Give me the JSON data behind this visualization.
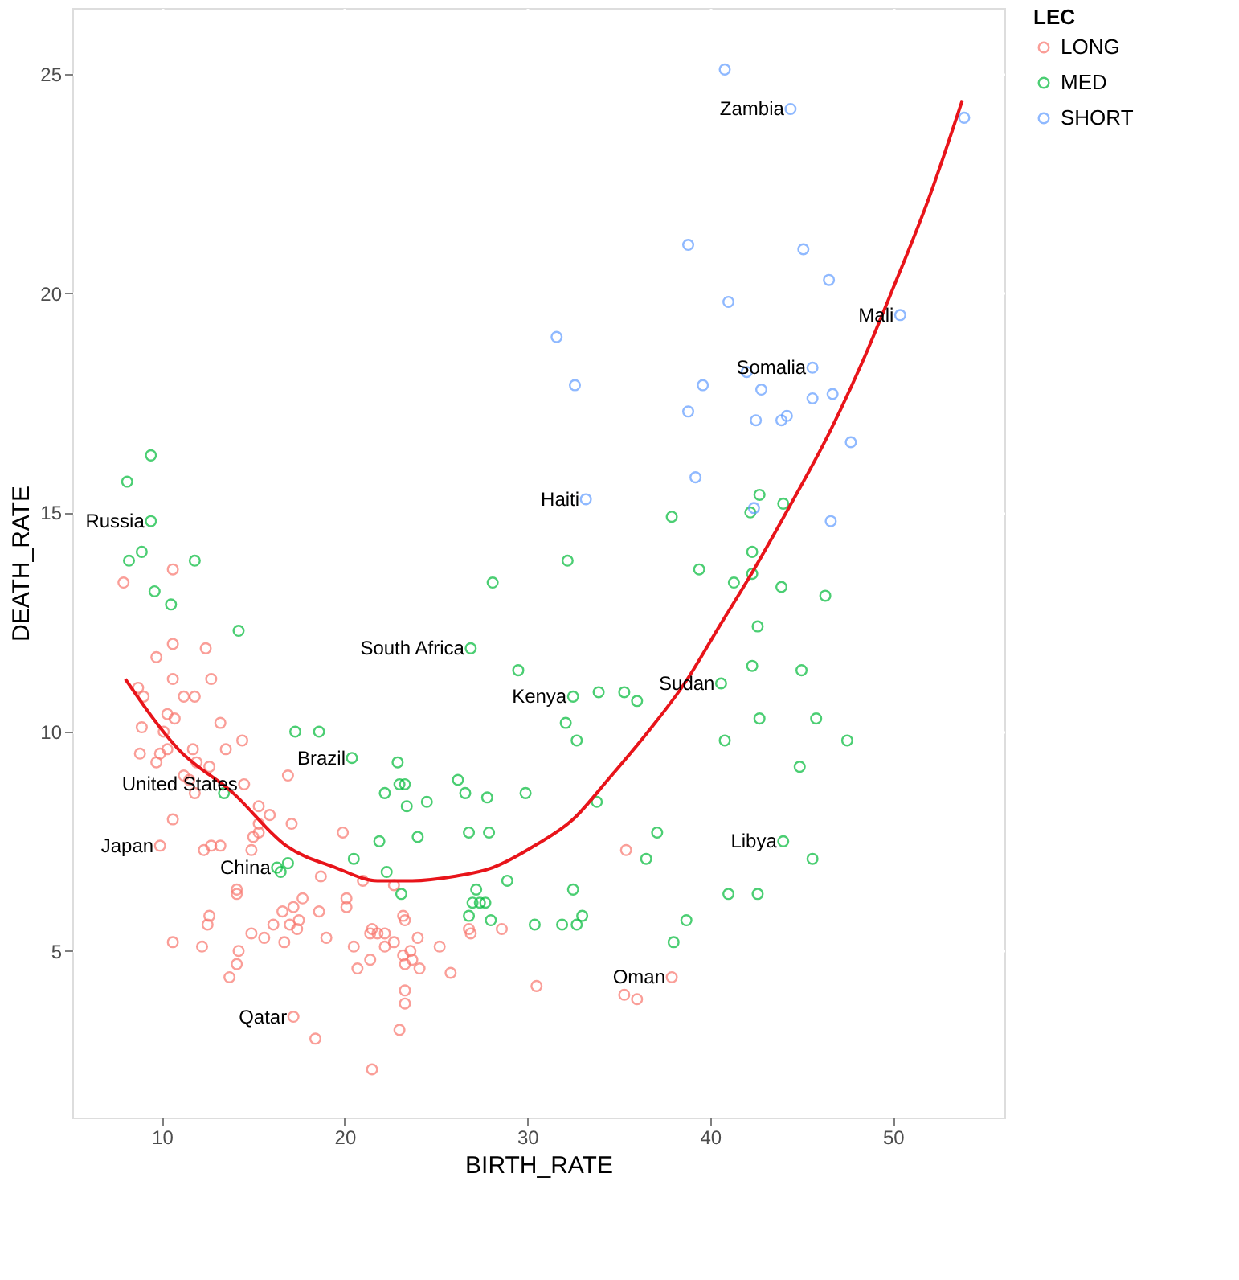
{
  "chart_data": {
    "type": "scatter",
    "xlabel": "BIRTH_RATE",
    "ylabel": "DEATH_RATE",
    "legend_title": "LEC",
    "legend": "right",
    "grid": true,
    "marker": "circle",
    "xlim": [
      5.1,
      56.1
    ],
    "ylim": [
      1.2,
      26.5
    ],
    "xticks": [
      10,
      20,
      30,
      40,
      50
    ],
    "yticks": [
      5,
      10,
      15,
      20,
      25
    ],
    "series": [
      {
        "name": "LONG",
        "color": "#f8766d",
        "x": [
          7.9,
          10.6,
          9.7,
          10.6,
          12.4,
          10.6,
          12.7,
          8.7,
          9.0,
          11.2,
          11.8,
          10.3,
          10.7,
          13.2,
          8.9,
          10.1,
          8.8,
          9.7,
          9.9,
          10.3,
          11.7,
          13.5,
          14.4,
          11.9,
          12.6,
          11.2,
          11.5,
          11.8,
          14.5,
          16.9,
          15.3,
          15.9,
          10.6,
          17.1,
          15.3,
          9.9,
          12.3,
          12.7,
          13.2,
          15.0,
          15.3,
          14.9,
          18.7,
          14.1,
          14.1,
          17.7,
          17.2,
          16.6,
          17.0,
          17.5,
          17.4,
          18.6,
          16.1,
          12.6,
          12.5,
          14.9,
          15.6,
          16.7,
          19.0,
          10.6,
          12.2,
          14.2,
          14.1,
          13.7,
          17.2,
          18.4,
          19.9,
          21.0,
          22.7,
          20.1,
          20.1,
          23.2,
          23.3,
          26.8,
          26.9,
          28.6,
          21.4,
          21.8,
          22.2,
          22.2,
          22.7,
          24.0,
          25.2,
          20.5,
          21.4,
          20.7,
          23.2,
          23.6,
          23.7,
          23.3,
          24.1,
          25.8,
          30.5,
          23.3,
          23.3,
          23.0,
          21.5,
          21.5,
          35.4,
          37.9,
          35.3,
          36.0
        ],
        "values": [
          13.4,
          13.7,
          11.7,
          12.0,
          11.9,
          11.2,
          11.2,
          11.0,
          10.8,
          10.8,
          10.8,
          10.4,
          10.3,
          10.2,
          10.1,
          10.0,
          9.5,
          9.3,
          9.5,
          9.6,
          9.6,
          9.6,
          9.8,
          9.3,
          9.2,
          9.0,
          8.9,
          8.6,
          8.8,
          9.0,
          8.3,
          8.1,
          8.0,
          7.9,
          7.9,
          7.4,
          7.3,
          7.4,
          7.4,
          7.6,
          7.7,
          7.3,
          6.7,
          6.4,
          6.3,
          6.2,
          6.0,
          5.9,
          5.6,
          5.7,
          5.5,
          5.9,
          5.6,
          5.8,
          5.6,
          5.4,
          5.3,
          5.2,
          5.3,
          5.2,
          5.1,
          5.0,
          4.7,
          4.4,
          3.5,
          3.0,
          7.7,
          6.6,
          6.5,
          6.2,
          6.0,
          5.8,
          5.7,
          5.5,
          5.4,
          5.5,
          5.4,
          5.4,
          5.4,
          5.1,
          5.2,
          5.3,
          5.1,
          5.1,
          4.8,
          4.6,
          4.9,
          5.0,
          4.8,
          4.7,
          4.6,
          4.5,
          4.2,
          4.1,
          3.8,
          3.2,
          2.3,
          5.5,
          7.3,
          4.4,
          4.0,
          3.9
        ]
      },
      {
        "name": "MED",
        "color": "#00ba38",
        "x": [
          9.4,
          8.1,
          9.4,
          8.9,
          8.2,
          11.8,
          9.6,
          10.5,
          14.2,
          17.3,
          18.6,
          16.3,
          16.9,
          16.5,
          13.4,
          32.2,
          28.1,
          26.9,
          29.5,
          32.5,
          33.9,
          32.1,
          32.7,
          20.4,
          22.9,
          23.0,
          23.3,
          26.2,
          26.6,
          27.8,
          29.9,
          22.2,
          24.5,
          23.4,
          33.8,
          21.9,
          24.0,
          26.8,
          27.9,
          20.5,
          22.3,
          23.1,
          28.9,
          27.2,
          27.0,
          27.4,
          27.7,
          32.5,
          26.8,
          28.0,
          30.4,
          31.9,
          32.7,
          33.0,
          42.7,
          44.0,
          37.9,
          42.2,
          42.3,
          39.4,
          42.3,
          41.3,
          43.9,
          46.3,
          42.6,
          42.3,
          45.0,
          40.6,
          35.3,
          36.0,
          42.7,
          45.8,
          40.8,
          47.5,
          44.9,
          37.1,
          36.5,
          44.0,
          45.6,
          41.0,
          42.6,
          38.7,
          38.0
        ],
        "values": [
          16.3,
          15.7,
          14.8,
          14.1,
          13.9,
          13.9,
          13.2,
          12.9,
          12.3,
          10.0,
          10.0,
          6.9,
          7.0,
          6.8,
          8.6,
          13.9,
          13.4,
          11.9,
          11.4,
          10.8,
          10.9,
          10.2,
          9.8,
          9.4,
          9.3,
          8.8,
          8.8,
          8.9,
          8.6,
          8.5,
          8.6,
          8.6,
          8.4,
          8.3,
          8.4,
          7.5,
          7.6,
          7.7,
          7.7,
          7.1,
          6.8,
          6.3,
          6.6,
          6.4,
          6.1,
          6.1,
          6.1,
          6.4,
          5.8,
          5.7,
          5.6,
          5.6,
          5.6,
          5.8,
          15.4,
          15.2,
          14.9,
          15.0,
          14.1,
          13.7,
          13.6,
          13.4,
          13.3,
          13.1,
          12.4,
          11.5,
          11.4,
          11.1,
          10.9,
          10.7,
          10.3,
          10.3,
          9.8,
          9.8,
          9.2,
          7.7,
          7.1,
          7.5,
          7.1,
          6.3,
          6.3,
          5.7,
          5.2
        ]
      },
      {
        "name": "SHORT",
        "color": "#619cff",
        "x": [
          40.8,
          44.4,
          53.9,
          38.8,
          45.1,
          46.5,
          41.0,
          50.4,
          31.6,
          45.6,
          42.0,
          32.6,
          39.6,
          42.8,
          46.7,
          45.6,
          38.8,
          42.5,
          43.9,
          44.2,
          47.7,
          39.2,
          33.2,
          42.4,
          46.6
        ],
        "values": [
          25.1,
          24.2,
          24.0,
          21.1,
          21.0,
          20.3,
          19.8,
          19.5,
          19.0,
          18.3,
          18.2,
          17.9,
          17.9,
          17.8,
          17.7,
          17.6,
          17.3,
          17.1,
          17.1,
          17.2,
          16.6,
          15.8,
          15.3,
          15.1,
          14.8
        ]
      },
      {
        "type": "line",
        "marker": "none",
        "line_style": "solid",
        "color": "#e8141a",
        "x": [
          8.0,
          10.9,
          13.9,
          16.8,
          19.5,
          21.8,
          23.7,
          26.0,
          28.1,
          30.4,
          32.5,
          34.4,
          36.8,
          38.6,
          40.5,
          42.4,
          44.3,
          46.5,
          48.3,
          50.0,
          52.0,
          53.8
        ],
        "values": [
          11.2,
          9.6,
          8.6,
          7.4,
          6.9,
          6.6,
          6.6,
          6.7,
          6.9,
          7.4,
          8.0,
          8.9,
          10.1,
          11.1,
          12.4,
          13.7,
          15.1,
          16.8,
          18.4,
          20.1,
          22.2,
          24.4
        ]
      }
    ],
    "annotations": [
      {
        "text": "Zambia",
        "x": 44.4,
        "y": 24.2
      },
      {
        "text": "Mali",
        "x": 50.4,
        "y": 19.5
      },
      {
        "text": "Somalia",
        "x": 45.6,
        "y": 18.3
      },
      {
        "text": "Haiti",
        "x": 33.2,
        "y": 15.3
      },
      {
        "text": "Russia",
        "x": 9.4,
        "y": 14.8
      },
      {
        "text": "South Africa",
        "x": 26.9,
        "y": 11.9
      },
      {
        "text": "Sudan",
        "x": 40.6,
        "y": 11.1
      },
      {
        "text": "Kenya",
        "x": 32.5,
        "y": 10.8
      },
      {
        "text": "Brazil",
        "x": 20.4,
        "y": 9.4
      },
      {
        "text": "United States",
        "x": 14.5,
        "y": 8.8
      },
      {
        "text": "Japan",
        "x": 9.9,
        "y": 7.4
      },
      {
        "text": "China",
        "x": 16.3,
        "y": 6.9
      },
      {
        "text": "Libya",
        "x": 44.0,
        "y": 7.5
      },
      {
        "text": "Oman",
        "x": 37.9,
        "y": 4.4
      },
      {
        "text": "Qatar",
        "x": 17.2,
        "y": 3.5
      }
    ]
  }
}
